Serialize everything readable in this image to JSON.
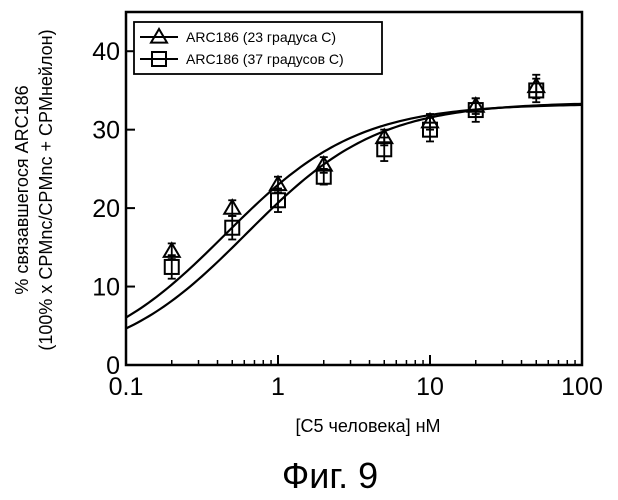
{
  "chart_data": {
    "type": "scatter",
    "xscale": "log",
    "xlim": [
      0.1,
      100
    ],
    "ylim": [
      0,
      45
    ],
    "xticks": [
      {
        "value": 0.1,
        "label": "0.1"
      },
      {
        "value": 1,
        "label": "1"
      },
      {
        "value": 10,
        "label": "10"
      },
      {
        "value": 100,
        "label": "100"
      }
    ],
    "yticks": [
      {
        "value": 0,
        "label": "0"
      },
      {
        "value": 10,
        "label": "10"
      },
      {
        "value": 20,
        "label": "20"
      },
      {
        "value": 30,
        "label": "30"
      },
      {
        "value": 40,
        "label": "40"
      }
    ],
    "xlabel": "[С5 человека] нМ",
    "ylabel_line1": "% связавшегося ARC186",
    "ylabel_line2": "(100% x CPMnc/CPMnc + CPMнейлон)",
    "grid": false,
    "legend_position": "top-left",
    "caption": "Фиг. 9",
    "series": [
      {
        "name": "ARC186 (23 градуса С)",
        "marker": "triangle",
        "x": [
          0.2,
          0.5,
          1,
          2,
          5,
          10,
          20,
          50
        ],
        "y": [
          14.5,
          20,
          23,
          25.5,
          29,
          31,
          33,
          35.5
        ],
        "err": [
          1.0,
          1.0,
          1.0,
          1.0,
          1.0,
          1.0,
          1.0,
          1.5
        ],
        "fit": {
          "top": 33.3,
          "kd": 0.45
        }
      },
      {
        "name": "ARC186 (37 градусов С)",
        "marker": "square",
        "x": [
          0.2,
          0.5,
          1,
          2,
          5,
          10,
          20,
          50
        ],
        "y": [
          12.5,
          17.5,
          21,
          24,
          27.5,
          30,
          32.5,
          35
        ],
        "err": [
          1.5,
          1.5,
          1.5,
          1.0,
          1.5,
          1.5,
          1.5,
          1.5
        ],
        "fit": {
          "top": 33.5,
          "kd": 0.62
        }
      }
    ]
  }
}
